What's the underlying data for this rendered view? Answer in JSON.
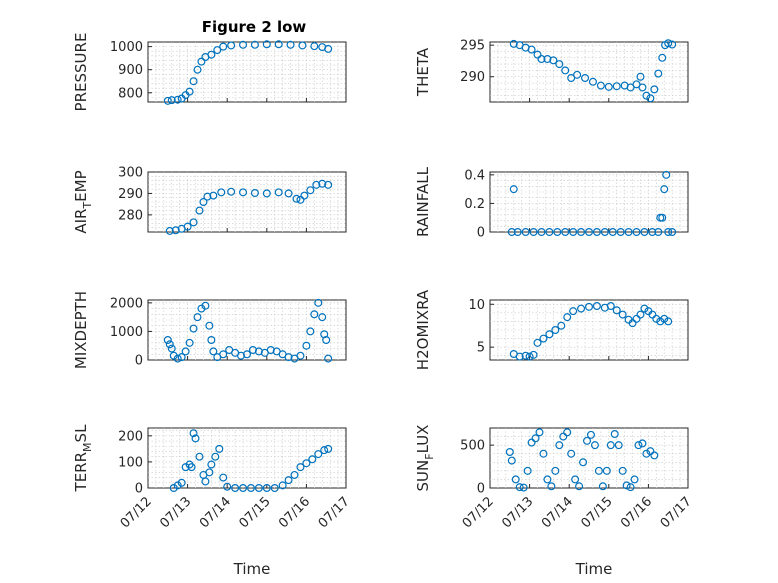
{
  "figure": {
    "title": "Figure 2 low",
    "xlabel": "Time",
    "x_tick_labels": [
      "07/12",
      "07/13",
      "07/14",
      "07/15",
      "07/16",
      "07/17"
    ],
    "marker_color": "#0072BD"
  },
  "chart_data": [
    {
      "type": "scatter",
      "panel": "top-left",
      "title": "Figure 2 low",
      "ylabel": "PRESSURE",
      "xlim": [
        12,
        17
      ],
      "ylim": [
        760,
        1020
      ],
      "yticks": [
        800,
        900,
        1000
      ],
      "xticks": [],
      "x_unit": "day of July",
      "points": [
        [
          12.5,
          765
        ],
        [
          12.6,
          768
        ],
        [
          12.75,
          770
        ],
        [
          12.85,
          775
        ],
        [
          12.95,
          790
        ],
        [
          13.05,
          805
        ],
        [
          13.15,
          850
        ],
        [
          13.25,
          900
        ],
        [
          13.35,
          935
        ],
        [
          13.45,
          955
        ],
        [
          13.6,
          965
        ],
        [
          13.75,
          985
        ],
        [
          13.9,
          1000
        ],
        [
          14.1,
          1005
        ],
        [
          14.4,
          1008
        ],
        [
          14.7,
          1008
        ],
        [
          15.0,
          1010
        ],
        [
          15.3,
          1010
        ],
        [
          15.6,
          1008
        ],
        [
          15.9,
          1005
        ],
        [
          16.2,
          1002
        ],
        [
          16.4,
          998
        ],
        [
          16.55,
          990
        ]
      ]
    },
    {
      "type": "scatter",
      "panel": "top-right",
      "ylabel": "THETA",
      "xlim": [
        12,
        17
      ],
      "ylim": [
        286,
        295.5
      ],
      "yticks": [
        290,
        295
      ],
      "xticks": [],
      "x_unit": "day of July",
      "points": [
        [
          12.6,
          295.2
        ],
        [
          12.75,
          295
        ],
        [
          12.9,
          294.6
        ],
        [
          13.05,
          294.3
        ],
        [
          13.2,
          293.5
        ],
        [
          13.3,
          292.8
        ],
        [
          13.45,
          292.8
        ],
        [
          13.6,
          292.6
        ],
        [
          13.75,
          292
        ],
        [
          13.9,
          291
        ],
        [
          14.05,
          289.8
        ],
        [
          14.2,
          290.3
        ],
        [
          14.4,
          289.8
        ],
        [
          14.6,
          289.2
        ],
        [
          14.8,
          288.6
        ],
        [
          15.0,
          288.4
        ],
        [
          15.2,
          288.5
        ],
        [
          15.4,
          288.6
        ],
        [
          15.55,
          288.3
        ],
        [
          15.7,
          288.8
        ],
        [
          15.8,
          290
        ],
        [
          15.85,
          288.3
        ],
        [
          15.95,
          287
        ],
        [
          16.05,
          286.6
        ],
        [
          16.15,
          288
        ],
        [
          16.25,
          290.5
        ],
        [
          16.35,
          293
        ],
        [
          16.42,
          295
        ],
        [
          16.5,
          295.3
        ],
        [
          16.6,
          295.1
        ]
      ]
    },
    {
      "type": "scatter",
      "panel": "second-left",
      "ylabel": "AIR_TEMP",
      "ylabel_main": "AIR",
      "ylabel_sub": "T",
      "ylabel_rest": "EMP",
      "xlim": [
        12,
        17
      ],
      "ylim": [
        272,
        300
      ],
      "yticks": [
        280,
        290,
        300
      ],
      "xticks": [],
      "x_unit": "day of July",
      "points": [
        [
          12.55,
          272.5
        ],
        [
          12.7,
          272.8
        ],
        [
          12.85,
          273.5
        ],
        [
          13.0,
          274.5
        ],
        [
          13.15,
          276.5
        ],
        [
          13.3,
          282
        ],
        [
          13.4,
          286
        ],
        [
          13.5,
          288.5
        ],
        [
          13.65,
          289
        ],
        [
          13.85,
          290.5
        ],
        [
          14.1,
          290.8
        ],
        [
          14.4,
          290.5
        ],
        [
          14.7,
          290.2
        ],
        [
          15.0,
          290
        ],
        [
          15.3,
          290.5
        ],
        [
          15.55,
          290
        ],
        [
          15.75,
          287.5
        ],
        [
          15.85,
          287
        ],
        [
          15.95,
          289
        ],
        [
          16.1,
          291.5
        ],
        [
          16.25,
          294
        ],
        [
          16.4,
          294.5
        ],
        [
          16.55,
          294
        ]
      ]
    },
    {
      "type": "scatter",
      "panel": "second-right",
      "ylabel": "RAINFALL",
      "xlim": [
        12,
        17
      ],
      "ylim": [
        0,
        0.42
      ],
      "yticks": [
        0,
        0.2,
        0.4
      ],
      "xticks": [],
      "x_unit": "day of July",
      "points": [
        [
          12.55,
          0
        ],
        [
          12.6,
          0.3
        ],
        [
          12.7,
          0
        ],
        [
          12.9,
          0
        ],
        [
          13.1,
          0
        ],
        [
          13.3,
          0
        ],
        [
          13.5,
          0
        ],
        [
          13.7,
          0
        ],
        [
          13.9,
          0
        ],
        [
          14.1,
          0
        ],
        [
          14.3,
          0
        ],
        [
          14.5,
          0
        ],
        [
          14.7,
          0
        ],
        [
          14.9,
          0
        ],
        [
          15.1,
          0
        ],
        [
          15.3,
          0
        ],
        [
          15.5,
          0
        ],
        [
          15.7,
          0
        ],
        [
          15.9,
          0
        ],
        [
          16.1,
          0
        ],
        [
          16.25,
          0
        ],
        [
          16.3,
          0.1
        ],
        [
          16.35,
          0.1
        ],
        [
          16.4,
          0.3
        ],
        [
          16.45,
          0.4
        ],
        [
          16.5,
          0
        ],
        [
          16.6,
          0
        ]
      ]
    },
    {
      "type": "scatter",
      "panel": "third-left",
      "ylabel": "MIXDEPTH",
      "xlim": [
        12,
        17
      ],
      "ylim": [
        0,
        2100
      ],
      "yticks": [
        0,
        1000,
        2000
      ],
      "xticks": [],
      "x_unit": "day of July",
      "points": [
        [
          12.5,
          700
        ],
        [
          12.55,
          550
        ],
        [
          12.6,
          400
        ],
        [
          12.65,
          150
        ],
        [
          12.75,
          50
        ],
        [
          12.85,
          100
        ],
        [
          12.95,
          300
        ],
        [
          13.05,
          600
        ],
        [
          13.15,
          1100
        ],
        [
          13.25,
          1500
        ],
        [
          13.35,
          1800
        ],
        [
          13.45,
          1900
        ],
        [
          13.55,
          1200
        ],
        [
          13.6,
          700
        ],
        [
          13.65,
          300
        ],
        [
          13.75,
          100
        ],
        [
          13.9,
          200
        ],
        [
          14.05,
          350
        ],
        [
          14.2,
          250
        ],
        [
          14.35,
          150
        ],
        [
          14.5,
          200
        ],
        [
          14.65,
          350
        ],
        [
          14.8,
          300
        ],
        [
          14.95,
          250
        ],
        [
          15.1,
          350
        ],
        [
          15.25,
          300
        ],
        [
          15.4,
          200
        ],
        [
          15.55,
          100
        ],
        [
          15.7,
          50
        ],
        [
          15.85,
          150
        ],
        [
          16.0,
          500
        ],
        [
          16.1,
          1000
        ],
        [
          16.2,
          1600
        ],
        [
          16.3,
          2000
        ],
        [
          16.4,
          1500
        ],
        [
          16.45,
          900
        ],
        [
          16.5,
          700
        ],
        [
          16.55,
          50
        ]
      ]
    },
    {
      "type": "scatter",
      "panel": "third-right",
      "ylabel": "H2OMIXRA",
      "xlim": [
        12,
        17
      ],
      "ylim": [
        3.5,
        10.5
      ],
      "yticks": [
        5,
        10
      ],
      "xticks": [],
      "x_unit": "day of July",
      "points": [
        [
          12.6,
          4.2
        ],
        [
          12.75,
          3.9
        ],
        [
          12.9,
          4
        ],
        [
          13.0,
          3.9
        ],
        [
          13.1,
          4.1
        ],
        [
          13.2,
          5.5
        ],
        [
          13.35,
          6
        ],
        [
          13.5,
          6.5
        ],
        [
          13.65,
          7
        ],
        [
          13.8,
          7.5
        ],
        [
          13.95,
          8.5
        ],
        [
          14.1,
          9.2
        ],
        [
          14.3,
          9.5
        ],
        [
          14.5,
          9.7
        ],
        [
          14.7,
          9.8
        ],
        [
          14.9,
          9.6
        ],
        [
          15.05,
          9.8
        ],
        [
          15.2,
          9.3
        ],
        [
          15.35,
          8.8
        ],
        [
          15.5,
          8.2
        ],
        [
          15.6,
          7.8
        ],
        [
          15.7,
          8.3
        ],
        [
          15.8,
          8.8
        ],
        [
          15.9,
          9.5
        ],
        [
          16.0,
          9.2
        ],
        [
          16.1,
          8.8
        ],
        [
          16.2,
          8.3
        ],
        [
          16.3,
          8
        ],
        [
          16.4,
          8.3
        ],
        [
          16.5,
          8
        ]
      ]
    },
    {
      "type": "scatter",
      "panel": "bottom-left",
      "ylabel": "TERR_MSL",
      "ylabel_main": "TERR",
      "ylabel_sub": "M",
      "ylabel_rest": "SL",
      "xlim": [
        12,
        17
      ],
      "ylim": [
        0,
        230
      ],
      "yticks": [
        0,
        100,
        200
      ],
      "xticks": [
        12,
        13,
        14,
        15,
        16,
        17
      ],
      "x_unit": "day of July",
      "points": [
        [
          12.65,
          0
        ],
        [
          12.75,
          10
        ],
        [
          12.85,
          20
        ],
        [
          12.95,
          80
        ],
        [
          13.05,
          90
        ],
        [
          13.1,
          80
        ],
        [
          13.15,
          210
        ],
        [
          13.2,
          190
        ],
        [
          13.3,
          120
        ],
        [
          13.4,
          50
        ],
        [
          13.45,
          25
        ],
        [
          13.55,
          60
        ],
        [
          13.6,
          90
        ],
        [
          13.7,
          120
        ],
        [
          13.8,
          150
        ],
        [
          13.9,
          40
        ],
        [
          14.0,
          5
        ],
        [
          14.2,
          0
        ],
        [
          14.4,
          0
        ],
        [
          14.6,
          0
        ],
        [
          14.8,
          0
        ],
        [
          15.0,
          0
        ],
        [
          15.2,
          0
        ],
        [
          15.4,
          10
        ],
        [
          15.55,
          30
        ],
        [
          15.7,
          50
        ],
        [
          15.85,
          80
        ],
        [
          16.0,
          95
        ],
        [
          16.15,
          110
        ],
        [
          16.3,
          130
        ],
        [
          16.45,
          145
        ],
        [
          16.55,
          150
        ]
      ]
    },
    {
      "type": "scatter",
      "panel": "bottom-right",
      "ylabel": "SUN_FLUX",
      "ylabel_main": "SUN",
      "ylabel_sub": "F",
      "ylabel_rest": "LUX",
      "xlim": [
        12,
        17
      ],
      "ylim": [
        0,
        700
      ],
      "yticks": [
        0,
        500
      ],
      "xticks": [
        12,
        13,
        14,
        15,
        16,
        17
      ],
      "x_unit": "day of July",
      "points": [
        [
          12.5,
          420
        ],
        [
          12.55,
          320
        ],
        [
          12.65,
          100
        ],
        [
          12.75,
          10
        ],
        [
          12.85,
          5
        ],
        [
          12.95,
          200
        ],
        [
          13.05,
          530
        ],
        [
          13.15,
          580
        ],
        [
          13.25,
          650
        ],
        [
          13.35,
          400
        ],
        [
          13.45,
          100
        ],
        [
          13.55,
          20
        ],
        [
          13.65,
          200
        ],
        [
          13.75,
          500
        ],
        [
          13.85,
          600
        ],
        [
          13.95,
          650
        ],
        [
          14.05,
          400
        ],
        [
          14.15,
          100
        ],
        [
          14.25,
          20
        ],
        [
          14.35,
          300
        ],
        [
          14.45,
          550
        ],
        [
          14.55,
          620
        ],
        [
          14.65,
          500
        ],
        [
          14.75,
          200
        ],
        [
          14.85,
          20
        ],
        [
          14.95,
          200
        ],
        [
          15.05,
          500
        ],
        [
          15.15,
          630
        ],
        [
          15.25,
          500
        ],
        [
          15.35,
          200
        ],
        [
          15.45,
          30
        ],
        [
          15.55,
          10
        ],
        [
          15.65,
          100
        ],
        [
          15.75,
          500
        ],
        [
          15.85,
          520
        ],
        [
          15.95,
          400
        ],
        [
          16.05,
          430
        ],
        [
          16.15,
          380
        ]
      ]
    }
  ]
}
